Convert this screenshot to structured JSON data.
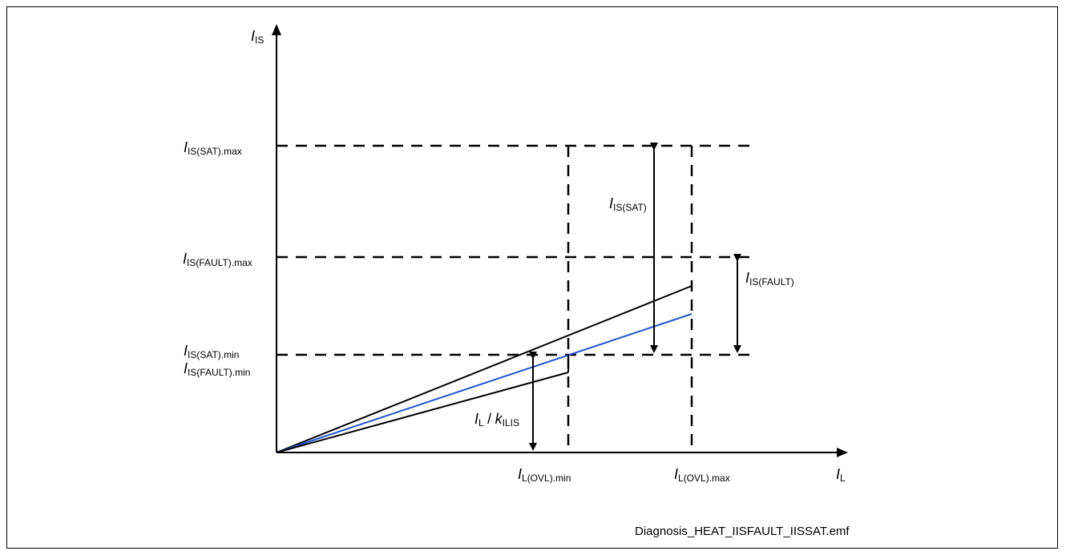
{
  "axes": {
    "y_label": {
      "symbol": "I",
      "sub": "IS"
    },
    "x_label": {
      "symbol": "I",
      "sub": "L"
    }
  },
  "levels": {
    "sat_max": {
      "symbol": "I",
      "sub": "IS(SAT).max"
    },
    "fault_max": {
      "symbol": "I",
      "sub": "IS(FAULT).max"
    },
    "sat_min": {
      "symbol": "I",
      "sub": "IS(SAT).min"
    },
    "fault_min": {
      "symbol": "I",
      "sub": "IS(FAULT).min"
    }
  },
  "ranges": {
    "sat": {
      "symbol": "I",
      "sub": "IS(SAT)"
    },
    "fault": {
      "symbol": "I",
      "sub": "IS(FAULT)"
    }
  },
  "ratio": {
    "numerator": "I",
    "num_sub": "L",
    "slash": "/",
    "k": "k",
    "k_sub": "ILIS"
  },
  "x_ticks": {
    "ovl_min": {
      "symbol": "I",
      "sub": "L(OVL).min"
    },
    "ovl_max": {
      "symbol": "I",
      "sub": "L(OVL).max"
    }
  },
  "colors": {
    "nominal_line": "#2255cc",
    "lines": "#000000"
  },
  "caption": "Diagnosis_HEAT_IISFAULT_IISSAT.emf"
}
